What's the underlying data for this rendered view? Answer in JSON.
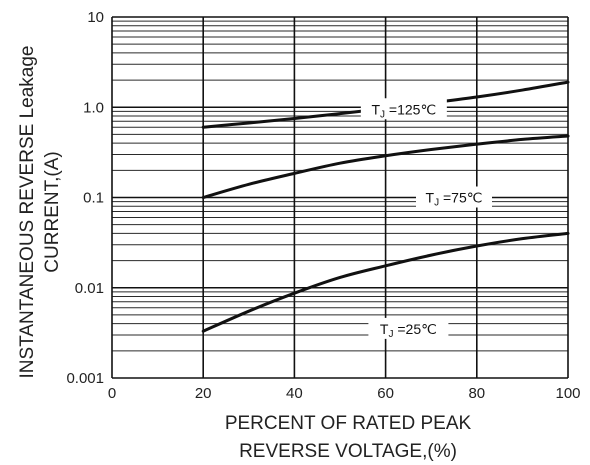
{
  "chart_data": {
    "type": "line",
    "xlabel": [
      "PERCENT OF RATED PEAK",
      "REVERSE VOLTAGE,(%)"
    ],
    "ylabel": [
      "INSTANTANEOUS REVERSE Leakage",
      "CURRENT,(A)"
    ],
    "x_scale": "linear",
    "y_scale": "log",
    "xlim": [
      0,
      100
    ],
    "ylim": [
      0.001,
      10
    ],
    "x_ticks": [
      0,
      20,
      40,
      60,
      80,
      100
    ],
    "x_tick_labels": [
      "0",
      "20",
      "40",
      "60",
      "80",
      "100"
    ],
    "y_ticks": [
      0.001,
      0.01,
      0.1,
      1,
      10
    ],
    "y_tick_labels": [
      "0.001",
      "0.01",
      "0.1",
      "1.0",
      "10"
    ],
    "grid": true,
    "series": [
      {
        "name": "TJ=125℃",
        "x": [
          20,
          30,
          40,
          50,
          60,
          70,
          80,
          90,
          100
        ],
        "y": [
          0.6,
          0.67,
          0.75,
          0.85,
          0.97,
          1.12,
          1.3,
          1.55,
          1.9
        ]
      },
      {
        "name": "TJ=75℃",
        "x": [
          20,
          30,
          40,
          50,
          60,
          70,
          80,
          90,
          100
        ],
        "y": [
          0.1,
          0.14,
          0.185,
          0.24,
          0.29,
          0.34,
          0.39,
          0.44,
          0.48
        ]
      },
      {
        "name": "TJ=25℃",
        "x": [
          20,
          30,
          40,
          50,
          60,
          70,
          80,
          90,
          100
        ],
        "y": [
          0.0033,
          0.0055,
          0.0087,
          0.013,
          0.0175,
          0.023,
          0.029,
          0.035,
          0.04
        ]
      }
    ],
    "curve_labels": [
      {
        "prefix": "T",
        "sub": "J",
        "suffix": " =125℃",
        "series": 0
      },
      {
        "prefix": "T",
        "sub": "J",
        "suffix": " =75℃",
        "series": 1
      },
      {
        "prefix": "T",
        "sub": "J",
        "suffix": " =25℃",
        "series": 2
      }
    ]
  }
}
